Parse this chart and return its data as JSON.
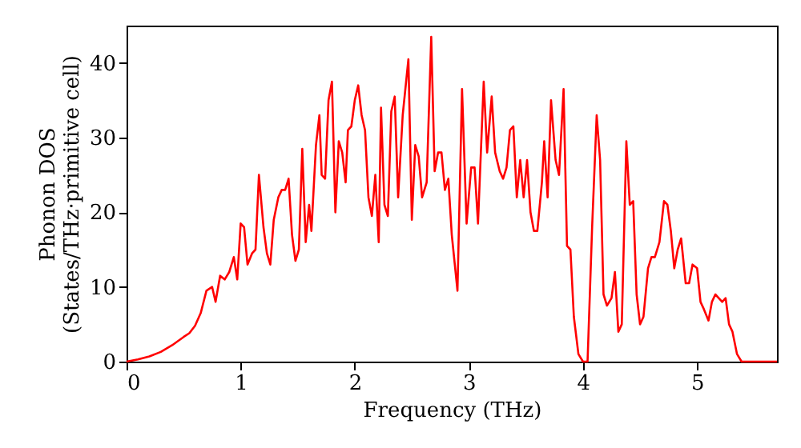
{
  "chart_data": {
    "type": "line",
    "xlabel": "Frequency (THz)",
    "ylabel": "Phonon DOS\n(States/THz·primitive cell)",
    "x": [
      0,
      0.1,
      0.2,
      0.3,
      0.4,
      0.5,
      0.55,
      0.6,
      0.65,
      0.7,
      0.75,
      0.78,
      0.82,
      0.86,
      0.9,
      0.94,
      0.97,
      1.0,
      1.03,
      1.06,
      1.1,
      1.13,
      1.16,
      1.2,
      1.23,
      1.26,
      1.29,
      1.33,
      1.36,
      1.39,
      1.42,
      1.45,
      1.48,
      1.51,
      1.54,
      1.57,
      1.6,
      1.62,
      1.66,
      1.69,
      1.71,
      1.74,
      1.77,
      1.8,
      1.83,
      1.86,
      1.89,
      1.92,
      1.94,
      1.97,
      2.0,
      2.03,
      2.06,
      2.09,
      2.12,
      2.15,
      2.18,
      2.21,
      2.23,
      2.26,
      2.29,
      2.32,
      2.35,
      2.38,
      2.42,
      2.47,
      2.5,
      2.53,
      2.56,
      2.59,
      2.63,
      2.67,
      2.7,
      2.73,
      2.76,
      2.79,
      2.82,
      2.85,
      2.9,
      2.94,
      2.98,
      3.02,
      3.05,
      3.08,
      3.13,
      3.16,
      3.2,
      3.23,
      3.27,
      3.3,
      3.33,
      3.36,
      3.39,
      3.42,
      3.45,
      3.48,
      3.51,
      3.54,
      3.57,
      3.6,
      3.64,
      3.66,
      3.69,
      3.72,
      3.76,
      3.79,
      3.83,
      3.86,
      3.89,
      3.92,
      3.96,
      4.0,
      4.04,
      4.08,
      4.12,
      4.15,
      4.18,
      4.21,
      4.25,
      4.28,
      4.31,
      4.34,
      4.38,
      4.41,
      4.44,
      4.47,
      4.5,
      4.53,
      4.57,
      4.6,
      4.63,
      4.67,
      4.71,
      4.74,
      4.77,
      4.8,
      4.83,
      4.86,
      4.9,
      4.93,
      4.96,
      5.0,
      5.03,
      5.06,
      5.1,
      5.13,
      5.16,
      5.19,
      5.22,
      5.25,
      5.28,
      5.31,
      5.35,
      5.39,
      5.5,
      5.7
    ],
    "series": [
      {
        "color": "#ff0000",
        "values": [
          0,
          0.3,
          0.7,
          1.3,
          2.2,
          3.3,
          3.8,
          4.8,
          6.5,
          9.5,
          10,
          8,
          11.5,
          11,
          12,
          14,
          11,
          18.5,
          18,
          13,
          14.5,
          15,
          25,
          18,
          14.5,
          13,
          19,
          22,
          23,
          23,
          24.5,
          17,
          13.5,
          15,
          28.5,
          16,
          21,
          17.5,
          29,
          33,
          25,
          24.5,
          35,
          37.5,
          20,
          29.5,
          28,
          24,
          31,
          31.5,
          35,
          37,
          33,
          31,
          22,
          19.5,
          25,
          16,
          34,
          21,
          19.5,
          33.5,
          35.5,
          22,
          33,
          40.5,
          19,
          29,
          27.5,
          22,
          24,
          43.5,
          25.5,
          28,
          28,
          23,
          24.5,
          17,
          9.5,
          36.5,
          18.5,
          26,
          26,
          18.5,
          37.5,
          28,
          35.5,
          28,
          25.5,
          24.5,
          26,
          31,
          31.5,
          22,
          27,
          22,
          27,
          20,
          17.5,
          17.5,
          24,
          29.5,
          22,
          35,
          27,
          25,
          36.5,
          15.5,
          15,
          6,
          1,
          0,
          0,
          18,
          33,
          27,
          9,
          7.5,
          8.5,
          12,
          4,
          5,
          29.5,
          21,
          21.5,
          9,
          5,
          6,
          12.5,
          14,
          14,
          16,
          21.5,
          21,
          17.5,
          12.5,
          15,
          16.5,
          10.5,
          10.5,
          13,
          12.5,
          8,
          7,
          5.5,
          8,
          9,
          8.5,
          8,
          8.5,
          5,
          4,
          1,
          0,
          0,
          0
        ]
      }
    ],
    "xlim": [
      0,
      5.7
    ],
    "xticks": [
      0,
      1,
      2,
      3,
      4,
      5
    ],
    "ylim": [
      0,
      45
    ],
    "yticks": [
      0,
      10,
      20,
      30,
      40
    ],
    "marker": "none",
    "line_style": "solid"
  }
}
